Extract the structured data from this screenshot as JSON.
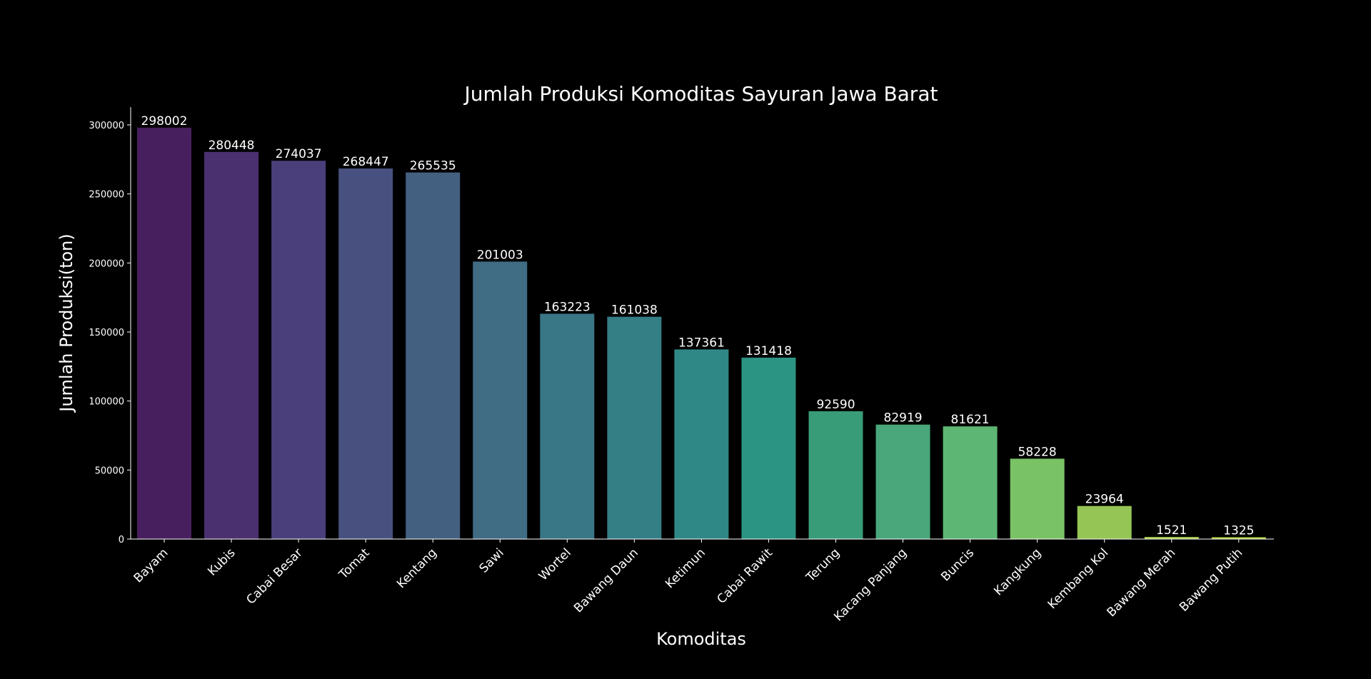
{
  "chart_data": {
    "type": "bar",
    "title": "Jumlah Produksi Komoditas Sayuran Jawa Barat",
    "xlabel": "Komoditas",
    "ylabel": "Jumlah Produksi(ton)",
    "categories": [
      "Bayam",
      "Kubis",
      "Cabai Besar",
      "Tomat",
      "Kentang",
      "Sawi",
      "Wortel",
      "Bawang Daun",
      "Ketimun",
      "Cabai Rawit",
      "Terung",
      "Kacang Panjang",
      "Buncis",
      "Kangkung",
      "Kembang Kol",
      "Bawang Merah",
      "Bawang Putih"
    ],
    "values": [
      298002,
      280448,
      274037,
      268447,
      265535,
      201003,
      163223,
      161038,
      137361,
      131418,
      92590,
      82919,
      81621,
      58228,
      23964,
      1521,
      1325
    ],
    "data_labels": [
      "298002",
      "280448",
      "274037",
      "268447",
      "265535",
      "201003",
      "163223",
      "161038",
      "137361",
      "131418",
      "92590",
      "82919",
      "81621",
      "58228",
      "23964",
      "1521",
      "1325"
    ],
    "colors": [
      "#481f5e",
      "#4b306f",
      "#4a3f7a",
      "#48507f",
      "#446081",
      "#406c84",
      "#397686",
      "#347e86",
      "#2f8886",
      "#2b9482",
      "#399c78",
      "#49a77b",
      "#5db673",
      "#7ac266",
      "#95c555",
      "#a8cc48",
      "#b3d23e"
    ],
    "yticks": [
      "0",
      "50000",
      "100000",
      "150000",
      "200000",
      "250000",
      "300000"
    ],
    "ylim": [
      0,
      312901
    ],
    "grid": false,
    "legend": "none",
    "background": "#000000",
    "text_color": "#ffffff"
  }
}
